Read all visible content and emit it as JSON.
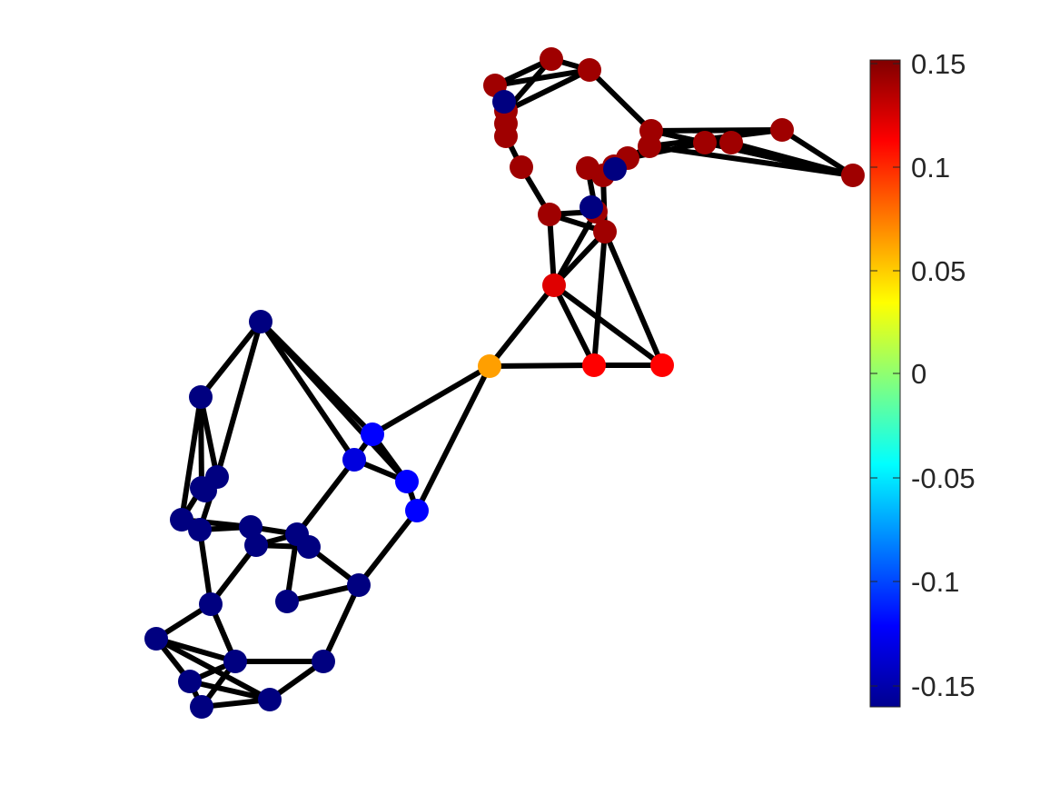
{
  "colorbar": {
    "ticks": [
      "0.15",
      "0.1",
      "0.05",
      "0",
      "-0.05",
      "-0.1",
      "-0.15"
    ],
    "range": [
      -0.16,
      0.16
    ],
    "colormap": "jet"
  },
  "graph": {
    "node_count": 51,
    "node_values": [
      0.15,
      0.15,
      0.15,
      0.15,
      0.15,
      0.15,
      0.15,
      0.15,
      0.15,
      0.15,
      0.15,
      0.15,
      0.15,
      0.15,
      0.15,
      0.15,
      0.15,
      0.15,
      0.15,
      0.15,
      0.13,
      0.12,
      0.12,
      0.07,
      -0.12,
      -0.13,
      -0.12,
      -0.12,
      -0.16,
      -0.16,
      -0.16,
      -0.16,
      -0.16,
      -0.16,
      -0.16,
      -0.16,
      -0.16,
      -0.16,
      -0.16,
      -0.16,
      -0.16,
      -0.16,
      -0.16,
      -0.16,
      -0.16,
      -0.16,
      -0.16,
      -0.16,
      -0.16,
      -0.16,
      -0.16
    ],
    "edge_color": "#000000"
  }
}
